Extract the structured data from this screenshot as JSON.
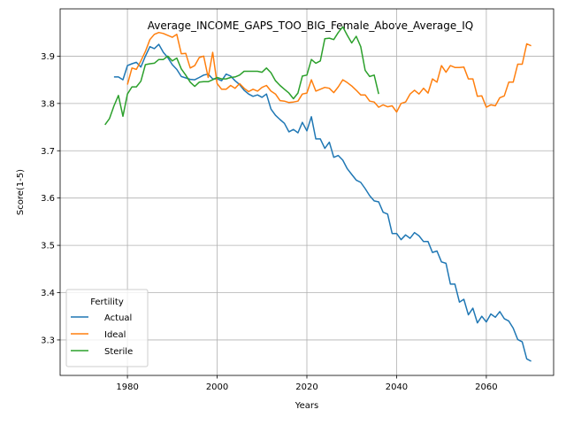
{
  "chart_data": {
    "type": "line",
    "title": "Average_INCOME_GAPS_TOO_BIG_Female_Above_Average_IQ",
    "xlabel": "Years",
    "ylabel": "Score(1-5)",
    "xlim": [
      1965,
      2075
    ],
    "ylim": [
      3.225,
      4.0
    ],
    "xticks": [
      1980,
      2000,
      2020,
      2040,
      2060
    ],
    "yticks": [
      3.3,
      3.4,
      3.5,
      3.6,
      3.7,
      3.8,
      3.9
    ],
    "ytick_labels": [
      "3.3",
      "3.4",
      "3.5",
      "3.6",
      "3.7",
      "3.8",
      "3.9"
    ],
    "grid": true,
    "legend": {
      "title": "Fertility",
      "position": "lower-left"
    },
    "series": [
      {
        "name": "Actual",
        "color": "#1f77b4",
        "x": [
          1977,
          1978,
          1979,
          1980,
          1981,
          1982,
          1983,
          1984,
          1985,
          1986,
          1987,
          1988,
          1989,
          1990,
          1991,
          1992,
          1993,
          1994,
          1995,
          1996,
          1997,
          1998,
          1999,
          2000,
          2001,
          2002,
          2003,
          2004,
          2005,
          2006,
          2007,
          2008,
          2009,
          2010,
          2011,
          2012,
          2013,
          2014,
          2015,
          2016,
          2017,
          2018,
          2019,
          2020,
          2021,
          2022,
          2023,
          2024,
          2025,
          2026,
          2027,
          2028,
          2029,
          2030,
          2031,
          2032,
          2033,
          2034,
          2035,
          2036,
          2037,
          2038,
          2039,
          2040,
          2041,
          2042,
          2043,
          2044,
          2045,
          2046,
          2047,
          2048,
          2049,
          2050,
          2051,
          2052,
          2053,
          2054,
          2055,
          2056,
          2057,
          2058,
          2059,
          2060,
          2061,
          2062,
          2063,
          2064,
          2065,
          2066,
          2067,
          2068,
          2069,
          2070
        ],
        "y": [
          3.856,
          3.856,
          3.85,
          3.88,
          3.884,
          3.887,
          3.877,
          3.9,
          3.92,
          3.916,
          3.925,
          3.908,
          3.897,
          3.882,
          3.872,
          3.857,
          3.854,
          3.851,
          3.85,
          3.855,
          3.86,
          3.862,
          3.852,
          3.852,
          3.848,
          3.862,
          3.858,
          3.848,
          3.84,
          3.828,
          3.82,
          3.815,
          3.818,
          3.813,
          3.82,
          3.788,
          3.775,
          3.766,
          3.758,
          3.74,
          3.745,
          3.738,
          3.76,
          3.742,
          3.772,
          3.725,
          3.725,
          3.705,
          3.718,
          3.686,
          3.69,
          3.68,
          3.662,
          3.65,
          3.638,
          3.633,
          3.62,
          3.605,
          3.594,
          3.592,
          3.57,
          3.566,
          3.525,
          3.525,
          3.512,
          3.522,
          3.515,
          3.527,
          3.52,
          3.508,
          3.508,
          3.485,
          3.488,
          3.465,
          3.462,
          3.418,
          3.418,
          3.38,
          3.386,
          3.353,
          3.367,
          3.336,
          3.35,
          3.338,
          3.355,
          3.348,
          3.36,
          3.345,
          3.34,
          3.325,
          3.301,
          3.296,
          3.26,
          3.255
        ]
      },
      {
        "name": "Ideal",
        "color": "#ff7f0e",
        "x": [
          1980,
          1981,
          1982,
          1983,
          1984,
          1985,
          1986,
          1987,
          1988,
          1989,
          1990,
          1991,
          1992,
          1993,
          1994,
          1995,
          1996,
          1997,
          1998,
          1999,
          2000,
          2001,
          2002,
          2003,
          2004,
          2005,
          2006,
          2007,
          2008,
          2009,
          2010,
          2011,
          2012,
          2013,
          2014,
          2015,
          2016,
          2017,
          2018,
          2019,
          2020,
          2021,
          2022,
          2023,
          2024,
          2025,
          2026,
          2027,
          2028,
          2029,
          2030,
          2031,
          2032,
          2033,
          2034,
          2035,
          2036,
          2037,
          2038,
          2039,
          2040,
          2041,
          2042,
          2043,
          2044,
          2045,
          2046,
          2047,
          2048,
          2049,
          2050,
          2051,
          2052,
          2053,
          2054,
          2055,
          2056,
          2057,
          2058,
          2059,
          2060,
          2061,
          2062,
          2063,
          2064,
          2065,
          2066,
          2067,
          2068,
          2069,
          2070
        ],
        "y": [
          3.84,
          3.875,
          3.872,
          3.89,
          3.91,
          3.935,
          3.946,
          3.95,
          3.948,
          3.944,
          3.94,
          3.946,
          3.905,
          3.906,
          3.875,
          3.88,
          3.897,
          3.9,
          3.855,
          3.908,
          3.842,
          3.83,
          3.83,
          3.838,
          3.832,
          3.842,
          3.832,
          3.825,
          3.83,
          3.826,
          3.834,
          3.838,
          3.826,
          3.82,
          3.806,
          3.805,
          3.802,
          3.803,
          3.805,
          3.82,
          3.822,
          3.85,
          3.826,
          3.83,
          3.834,
          3.832,
          3.823,
          3.835,
          3.85,
          3.844,
          3.837,
          3.828,
          3.818,
          3.818,
          3.805,
          3.803,
          3.792,
          3.797,
          3.793,
          3.795,
          3.782,
          3.8,
          3.803,
          3.82,
          3.828,
          3.82,
          3.832,
          3.822,
          3.852,
          3.845,
          3.88,
          3.866,
          3.88,
          3.876,
          3.876,
          3.877,
          3.852,
          3.852,
          3.815,
          3.816,
          3.792,
          3.797,
          3.795,
          3.812,
          3.816,
          3.845,
          3.845,
          3.883,
          3.883,
          3.926,
          3.922
        ]
      },
      {
        "name": "Sterile",
        "color": "#2ca02c",
        "x": [
          1975,
          1976,
          1977,
          1978,
          1979,
          1980,
          1981,
          1982,
          1983,
          1984,
          1985,
          1986,
          1987,
          1988,
          1989,
          1990,
          1991,
          1992,
          1993,
          1994,
          1995,
          1996,
          1997,
          1998,
          1999,
          2000,
          2001,
          2002,
          2003,
          2004,
          2005,
          2006,
          2007,
          2008,
          2009,
          2010,
          2011,
          2012,
          2013,
          2014,
          2015,
          2016,
          2017,
          2018,
          2019,
          2020,
          2021,
          2022,
          2023,
          2024,
          2025,
          2026,
          2027,
          2028,
          2029,
          2030,
          2031,
          2032,
          2033,
          2034,
          2035,
          2036
        ],
        "y": [
          3.755,
          3.768,
          3.795,
          3.817,
          3.773,
          3.82,
          3.835,
          3.835,
          3.847,
          3.882,
          3.884,
          3.885,
          3.893,
          3.893,
          3.9,
          3.89,
          3.896,
          3.873,
          3.86,
          3.845,
          3.836,
          3.845,
          3.846,
          3.846,
          3.85,
          3.855,
          3.852,
          3.852,
          3.855,
          3.856,
          3.86,
          3.868,
          3.868,
          3.868,
          3.868,
          3.866,
          3.875,
          3.865,
          3.848,
          3.838,
          3.83,
          3.822,
          3.81,
          3.822,
          3.858,
          3.86,
          3.893,
          3.885,
          3.89,
          3.937,
          3.938,
          3.935,
          3.95,
          3.962,
          3.944,
          3.928,
          3.942,
          3.92,
          3.87,
          3.857,
          3.86,
          3.82
        ]
      }
    ]
  }
}
